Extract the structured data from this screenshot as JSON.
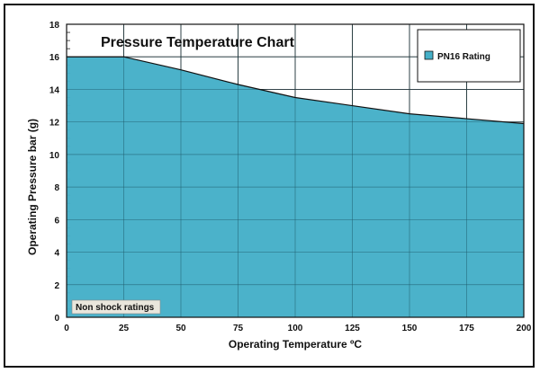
{
  "chart_data": {
    "type": "area",
    "title": "Pressure Temperature Chart",
    "xlabel": "Operating Temperature ºC",
    "ylabel": "Operating Pressure bar (g)",
    "x": [
      0,
      25,
      50,
      75,
      100,
      125,
      150,
      175,
      200
    ],
    "series": [
      {
        "name": "PN16 Rating",
        "values": [
          16,
          16,
          15.2,
          14.3,
          13.5,
          13.0,
          12.5,
          12.2,
          11.9
        ],
        "color": "#45b0c8"
      }
    ],
    "xlim": [
      0,
      200
    ],
    "ylim": [
      0,
      18
    ],
    "xticks": [
      "0",
      "25",
      "50",
      "75",
      "100",
      "125",
      "150",
      "175",
      "200"
    ],
    "yticks": [
      "0",
      "2",
      "4",
      "6",
      "8",
      "10",
      "12",
      "14",
      "16",
      "18"
    ],
    "grid": true,
    "legend_position": "top-right",
    "annotation": "Non shock ratings"
  }
}
